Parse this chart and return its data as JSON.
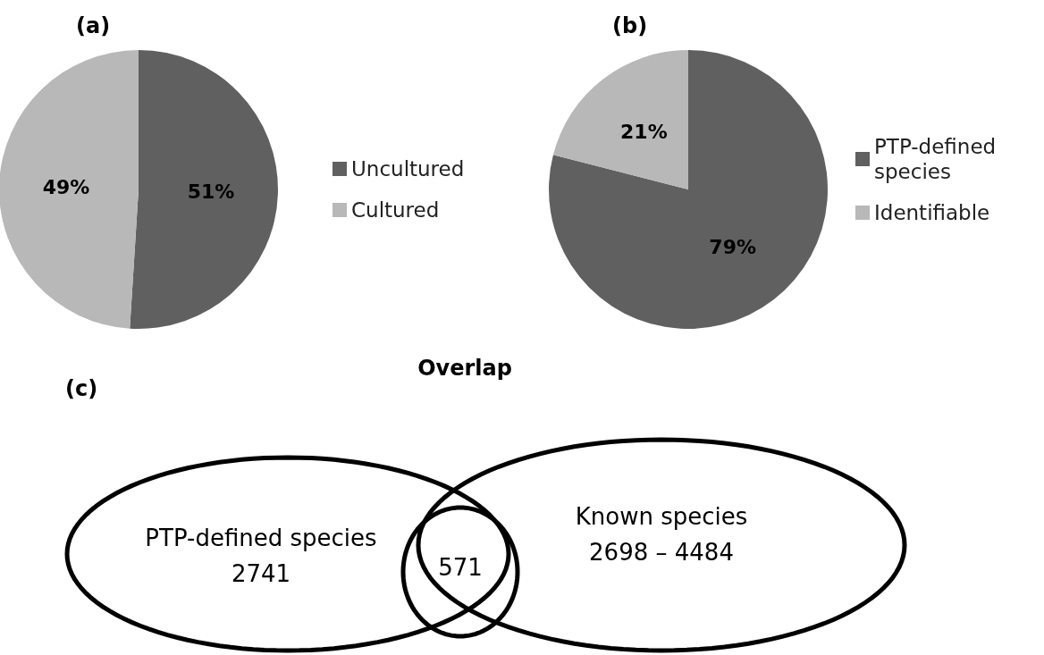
{
  "chart_data": [
    {
      "type": "pie",
      "title": "(a)",
      "categories": [
        "Uncultured",
        "Cultured"
      ],
      "values": [
        51,
        49
      ],
      "colors": [
        "#606060",
        "#b8b8b8"
      ],
      "value_labels": [
        "51%",
        "49%"
      ],
      "legend": "right"
    },
    {
      "type": "pie",
      "title": "(b)",
      "categories": [
        "PTP-defined species",
        "Identifiable"
      ],
      "values": [
        79,
        21
      ],
      "colors": [
        "#606060",
        "#b8b8b8"
      ],
      "value_labels": [
        "79%",
        "21%"
      ],
      "legend": "right"
    },
    {
      "type": "other",
      "title": "(c)",
      "categories": [
        "PTP-defined species",
        "Overlap",
        "Known species"
      ],
      "value_labels": [
        "2741",
        "571",
        "2698 – 4484"
      ]
    }
  ]
}
